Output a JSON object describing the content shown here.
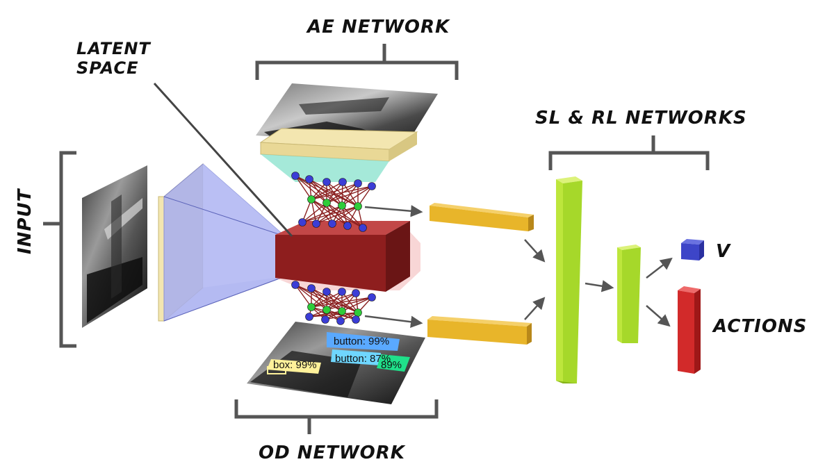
{
  "labels": {
    "ae_network": "AE NETWORK",
    "latent_space_line1": "LATENT",
    "latent_space_line2": "SPACE",
    "input": "INPUT",
    "sl_rl_networks": "SL & RL NETWORKS",
    "od_network": "OD NETWORK",
    "v": "V",
    "actions": "ACTIONS"
  },
  "detections": [
    {
      "label": "button: 99%"
    },
    {
      "label": "button: 87%"
    },
    {
      "label": "89%"
    },
    {
      "label": "box: 99%"
    }
  ],
  "colors": {
    "latent": "#8e1e1e",
    "encoder_trapezoid": "#a7aef0",
    "input_panel": "#f3e6b0",
    "ae_panel": "#f3e6b0",
    "ae_cyan": "#8fe3d0",
    "blue_node": "#3b3dd6",
    "green_node": "#2fcc3a",
    "connection": "#8a2020",
    "feature_bar": "#e8b52a",
    "sl_rl_bar": "#a6d82a",
    "v_cube": "#3d45c8",
    "actions_bar": "#d22a2a",
    "det_blue": "#5aa9ff",
    "det_cyan": "#6fd6ff",
    "det_green": "#1fe08a",
    "det_yellow": "#fff19a"
  }
}
